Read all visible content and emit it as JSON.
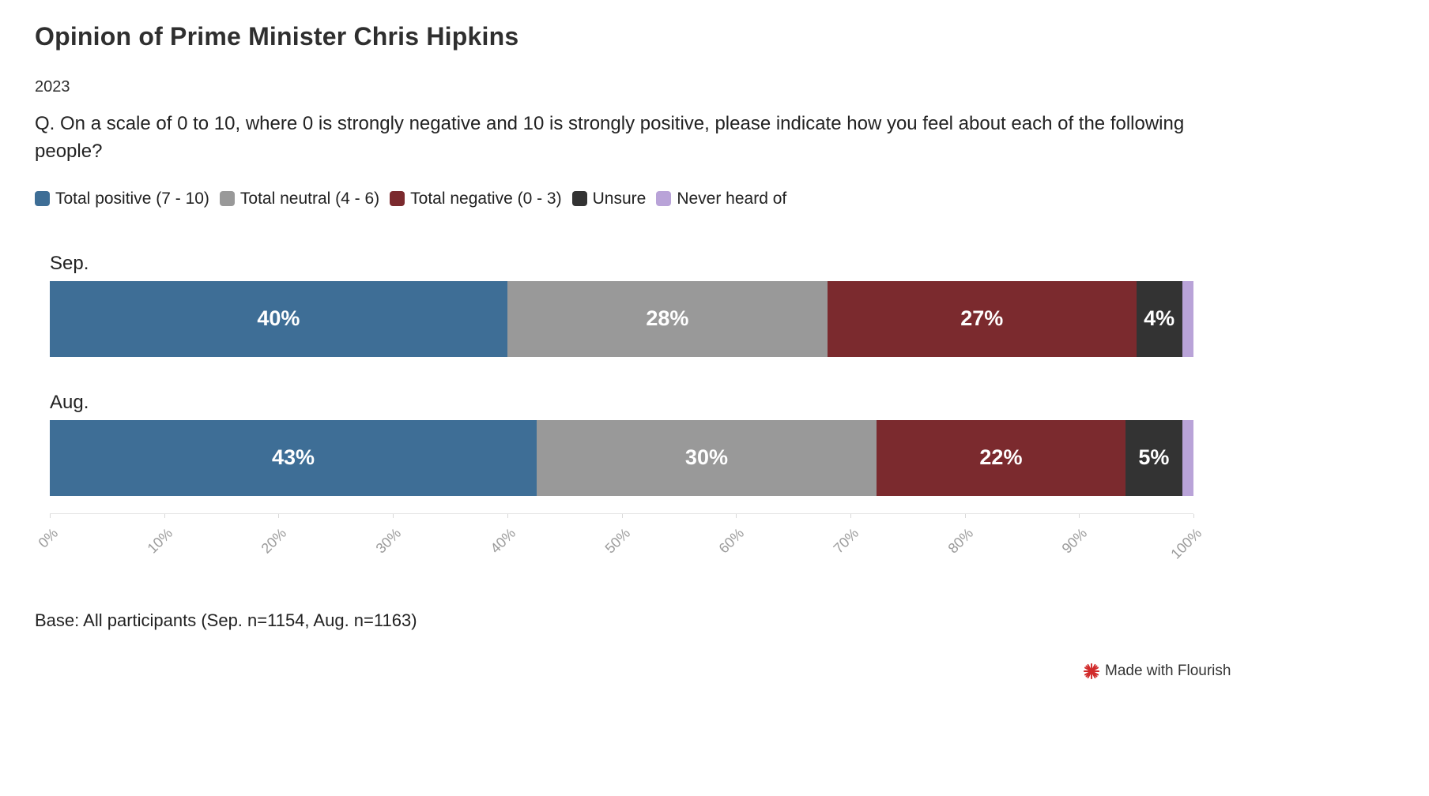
{
  "header": {
    "title": "Opinion of Prime Minister Chris Hipkins",
    "subtitle": "2023",
    "question": "Q. On a scale of 0 to 10, where 0 is strongly negative and 10 is strongly positive, please indicate how you feel about each of the following people?"
  },
  "legend": [
    {
      "label": "Total positive (7 - 10)",
      "color": "#3e6e96"
    },
    {
      "label": "Total neutral (4 - 6)",
      "color": "#999999"
    },
    {
      "label": "Total negative (0 - 3)",
      "color": "#7b2a2e"
    },
    {
      "label": "Unsure",
      "color": "#333333"
    },
    {
      "label": "Never heard of",
      "color": "#b9a3d8"
    }
  ],
  "chart_data": {
    "type": "bar",
    "subtype": "horizontal-stacked",
    "categories": [
      "Sep.",
      "Aug."
    ],
    "series": [
      {
        "name": "Total positive (7 - 10)",
        "color": "#3e6e96",
        "values": [
          40,
          43
        ]
      },
      {
        "name": "Total neutral (4 - 6)",
        "color": "#999999",
        "values": [
          28,
          30
        ]
      },
      {
        "name": "Total negative (0 - 3)",
        "color": "#7b2a2e",
        "values": [
          27,
          22
        ]
      },
      {
        "name": "Unsure",
        "color": "#333333",
        "values": [
          4,
          5
        ]
      },
      {
        "name": "Never heard of",
        "color": "#b9a3d8",
        "values": [
          1,
          1
        ]
      }
    ],
    "value_suffix": "%",
    "label_min_value": 2,
    "x_axis": {
      "range": [
        0,
        100
      ],
      "tick_step": 10,
      "ticks": [
        "0%",
        "10%",
        "20%",
        "30%",
        "40%",
        "50%",
        "60%",
        "70%",
        "80%",
        "90%",
        "100%"
      ]
    },
    "legend_position": "top",
    "grid": false
  },
  "footer": {
    "base_note": "Base: All participants (Sep. n=1154, Aug. n=1163)",
    "attribution": "Made with Flourish"
  }
}
